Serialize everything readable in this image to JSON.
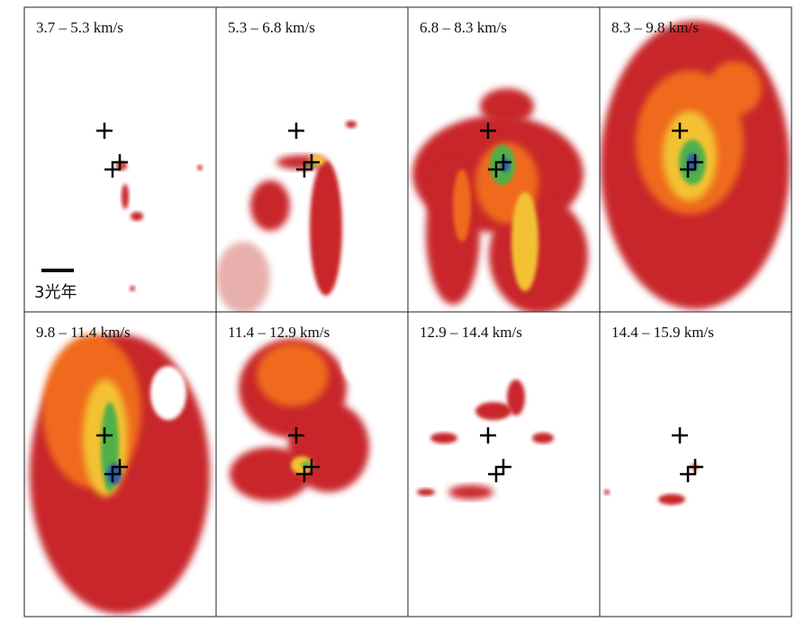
{
  "panels": [
    {
      "label": "3.7 – 5.3 km/s"
    },
    {
      "label": "5.3 – 6.8 km/s"
    },
    {
      "label": "6.8 – 8.3 km/s"
    },
    {
      "label": "8.3 – 9.8 km/s"
    },
    {
      "label": "9.8 – 11.4 km/s"
    },
    {
      "label": "11.4 – 12.9 km/s"
    },
    {
      "label": "12.9 – 14.4 km/s"
    },
    {
      "label": "14.4 – 15.9 km/s"
    }
  ],
  "scale_bar": {
    "label": "3光年"
  }
}
